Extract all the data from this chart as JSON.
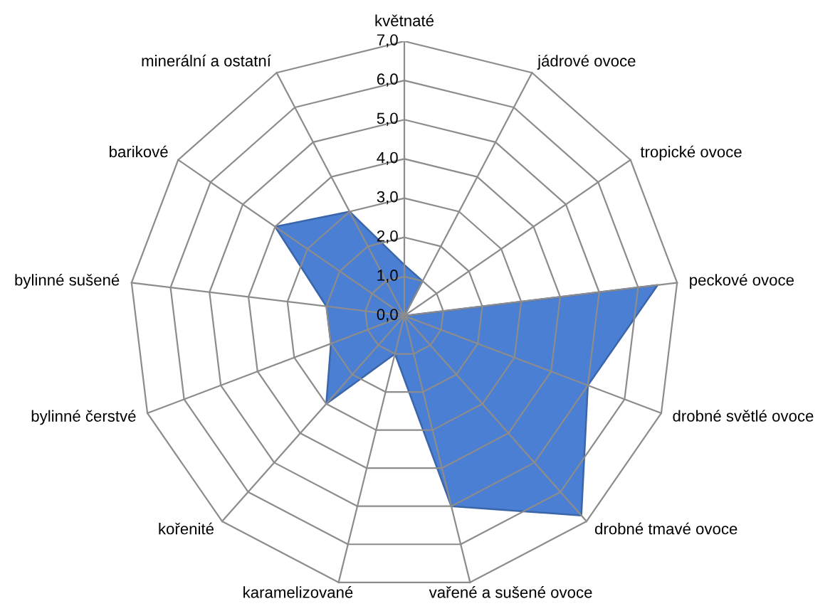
{
  "chart_data": {
    "type": "radar",
    "categories": [
      "květnaté",
      "jádrové ovoce",
      "tropické ovoce",
      "peckové ovoce",
      "drobné světlé ovoce",
      "drobné tmavé ovoce",
      "vařené a sušené ovoce",
      "karamelizované",
      "kořenité",
      "bylinné čerstvé",
      "bylinné sušené",
      "barikové",
      "minerální a ostatní"
    ],
    "series": [
      {
        "color": "#4a7fd4",
        "values": [
          1.3,
          1.0,
          0.0,
          6.5,
          5.0,
          6.8,
          5.0,
          1.0,
          3.0,
          2.0,
          2.0,
          4.0,
          3.0
        ]
      }
    ],
    "ylim": [
      0,
      7
    ],
    "yticks": [
      {
        "value": 0,
        "label": "0,0"
      },
      {
        "value": 1,
        "label": "1,0"
      },
      {
        "value": 2,
        "label": "2,0"
      },
      {
        "value": 3,
        "label": "3,0"
      },
      {
        "value": 4,
        "label": "4,0"
      },
      {
        "value": 5,
        "label": "5,0"
      },
      {
        "value": 6,
        "label": "6,0"
      },
      {
        "value": 7,
        "label": "7,0"
      }
    ],
    "grid": true
  }
}
